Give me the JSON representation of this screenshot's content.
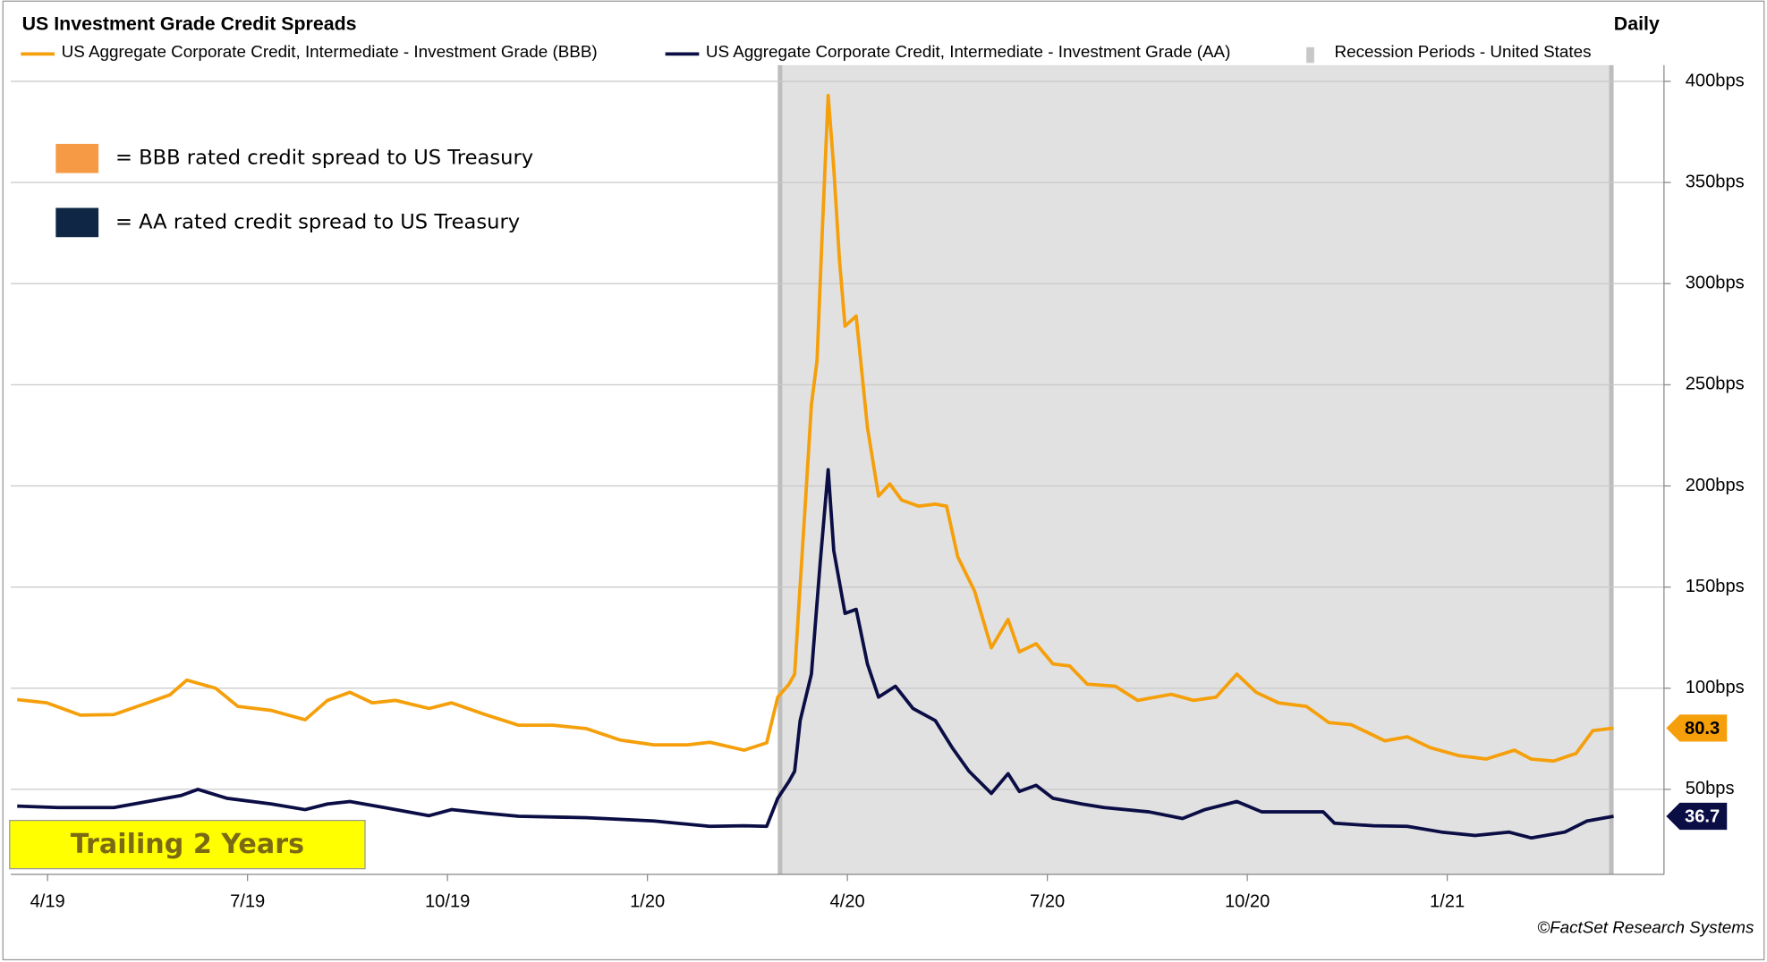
{
  "chart_data": {
    "type": "line",
    "title": "US Investment Grade Credit Spreads",
    "subtitle": "Daily",
    "source": "©FactSet Research Systems",
    "annotations": [
      "= BBB rated credit spread to US Treasury",
      "= AA rated credit spread to US Treasury",
      "Trailing 2 Years"
    ],
    "recession": {
      "name": "Recession Periods - United States",
      "color": "#e1e1e1",
      "x": [
        2020.163,
        2021.208
      ]
    },
    "xlim": [
      2019.204,
      2021.271
    ],
    "xticks": [
      {
        "value": 2019.25,
        "label": "4/19"
      },
      {
        "value": 2019.5,
        "label": "7/19"
      },
      {
        "value": 2019.75,
        "label": "10/19"
      },
      {
        "value": 2020.0,
        "label": "1/20"
      },
      {
        "value": 2020.25,
        "label": "4/20"
      },
      {
        "value": 2020.5,
        "label": "7/20"
      },
      {
        "value": 2020.75,
        "label": "10/20"
      },
      {
        "value": 2021.0,
        "label": "1/21"
      }
    ],
    "ylim": [
      8,
      408
    ],
    "yticks": [
      {
        "value": 50,
        "label": "50bps"
      },
      {
        "value": 100,
        "label": "100bps"
      },
      {
        "value": 150,
        "label": "150bps"
      },
      {
        "value": 200,
        "label": "200bps"
      },
      {
        "value": 250,
        "label": "250bps"
      },
      {
        "value": 300,
        "label": "300bps"
      },
      {
        "value": 350,
        "label": "350bps"
      },
      {
        "value": 400,
        "label": "400bps"
      }
    ],
    "grid": true,
    "series": [
      {
        "name": "US Aggregate Corporate Credit, Intermediate - Investment Grade (BBB)",
        "color": "#f59f0a",
        "x": [
          2019.212,
          2019.249,
          2019.291,
          2019.333,
          2019.375,
          2019.403,
          2019.424,
          2019.46,
          2019.488,
          2019.53,
          2019.572,
          2019.6,
          2019.628,
          2019.656,
          2019.685,
          2019.727,
          2019.755,
          2019.797,
          2019.839,
          2019.882,
          2019.924,
          2019.966,
          2020.008,
          2020.05,
          2020.078,
          2020.121,
          2020.149,
          2020.163,
          2020.177,
          2020.184,
          2020.191,
          2020.198,
          2020.205,
          2020.212,
          2020.219,
          2020.226,
          2020.233,
          2020.24,
          2020.247,
          2020.261,
          2020.275,
          2020.289,
          2020.303,
          2020.318,
          2020.339,
          2020.36,
          2020.374,
          2020.388,
          2020.409,
          2020.43,
          2020.451,
          2020.465,
          2020.486,
          2020.507,
          2020.528,
          2020.55,
          2020.585,
          2020.613,
          2020.655,
          2020.683,
          2020.711,
          2020.737,
          2020.761,
          2020.789,
          2020.824,
          2020.852,
          2020.88,
          2020.922,
          2020.95,
          2020.979,
          2021.014,
          2021.049,
          2021.084,
          2021.105,
          2021.133,
          2021.161,
          2021.182,
          2021.208
        ],
        "values": [
          94.4,
          92.8,
          86.7,
          87,
          92.8,
          96.7,
          104,
          100,
          91,
          89,
          84.4,
          94,
          98,
          92.8,
          94,
          90,
          92.8,
          87,
          81.7,
          81.7,
          80,
          74.4,
          72,
          72,
          73.3,
          69.4,
          73,
          95.6,
          102,
          107,
          151,
          195,
          240,
          262,
          329,
          393,
          357,
          312,
          279,
          284,
          229,
          195,
          201,
          193,
          190,
          191,
          190,
          165,
          148,
          120,
          134,
          118,
          122,
          112,
          111,
          102,
          101,
          94,
          97,
          94,
          95.6,
          107,
          98,
          92.8,
          91,
          83,
          82,
          74,
          76,
          70.6,
          66.7,
          65,
          69.4,
          65,
          64,
          67.8,
          79,
          80.3
        ]
      },
      {
        "name": "US Aggregate Corporate Credit, Intermediate - Investment Grade (AA)",
        "color": "#0b0d45",
        "x": [
          2019.212,
          2019.263,
          2019.333,
          2019.375,
          2019.417,
          2019.438,
          2019.474,
          2019.53,
          2019.572,
          2019.6,
          2019.628,
          2019.671,
          2019.727,
          2019.755,
          2019.797,
          2019.839,
          2019.924,
          2020.008,
          2020.078,
          2020.121,
          2020.149,
          2020.163,
          2020.177,
          2020.184,
          2020.191,
          2020.205,
          2020.216,
          2020.226,
          2020.233,
          2020.247,
          2020.261,
          2020.275,
          2020.289,
          2020.31,
          2020.332,
          2020.36,
          2020.381,
          2020.402,
          2020.43,
          2020.451,
          2020.465,
          2020.486,
          2020.507,
          2020.543,
          2020.571,
          2020.627,
          2020.669,
          2020.697,
          2020.737,
          2020.768,
          2020.81,
          2020.845,
          2020.859,
          2020.908,
          2020.95,
          2020.993,
          2021.035,
          2021.077,
          2021.105,
          2021.147,
          2021.175,
          2021.208
        ],
        "values": [
          41.7,
          41,
          41,
          44,
          47,
          50,
          45.6,
          42.8,
          40,
          42.8,
          44,
          41,
          37,
          40,
          38.3,
          36.7,
          36,
          34.4,
          31.7,
          32,
          31.7,
          45.6,
          54,
          59,
          84,
          107,
          162,
          208,
          168,
          137,
          139,
          112,
          95.6,
          101,
          90,
          84,
          70.6,
          59,
          48,
          57.8,
          49,
          52,
          45.6,
          42.8,
          41,
          38.9,
          35.6,
          40,
          44,
          38.9,
          38.9,
          38.9,
          33.3,
          32,
          31.7,
          28.9,
          27.2,
          28.9,
          26,
          28.9,
          34.4,
          36.7
        ]
      }
    ]
  }
}
